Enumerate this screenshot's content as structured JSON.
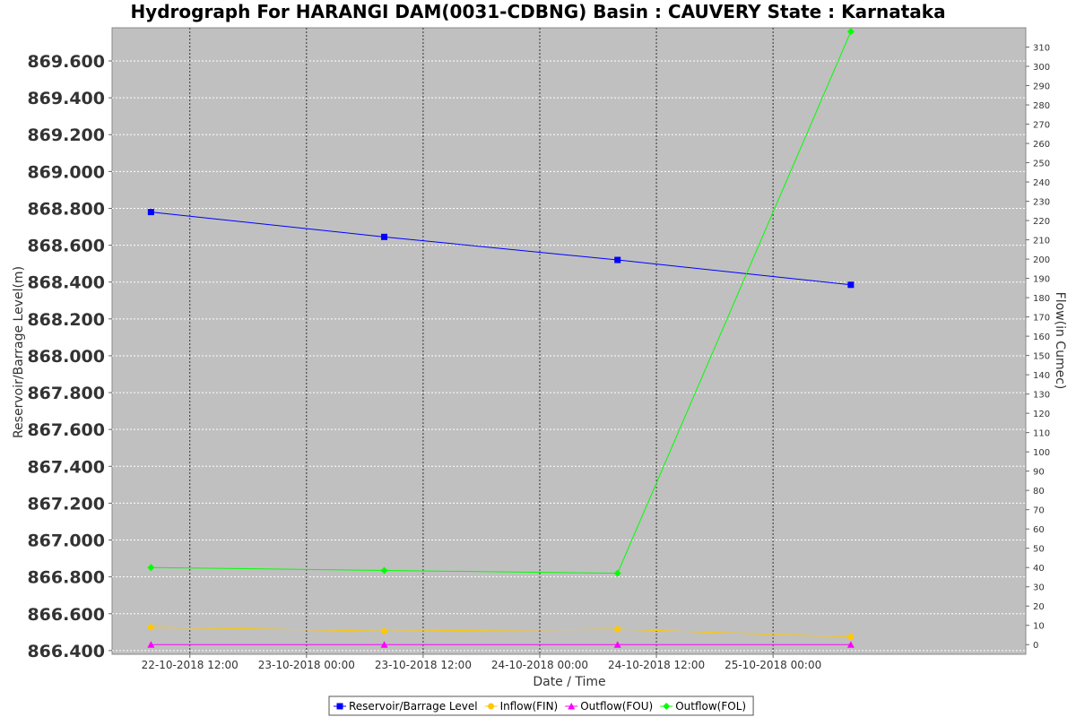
{
  "chart_data": {
    "type": "line",
    "title": "Hydrograph For HARANGI DAM(0031-CDBNG) Basin : CAUVERY State : Karnataka",
    "xlabel": "Date / Time",
    "ylabel_left": "Reservoir/Barrage Level(m)",
    "ylabel_right": "Flow(in Cumec)",
    "x_range": [
      "2018-10-22T04:00",
      "2018-10-26T02:00"
    ],
    "ylim_left": [
      866.38,
      869.78
    ],
    "ylim_right": [
      -5,
      320
    ],
    "x_ticks": [
      {
        "t": "2018-10-22T12:00",
        "label": "22-10-2018 12:00"
      },
      {
        "t": "2018-10-23T00:00",
        "label": "23-10-2018 00:00"
      },
      {
        "t": "2018-10-23T12:00",
        "label": "23-10-2018 12:00"
      },
      {
        "t": "2018-10-24T00:00",
        "label": "24-10-2018 00:00"
      },
      {
        "t": "2018-10-24T12:00",
        "label": "24-10-2018 12:00"
      },
      {
        "t": "2018-10-25T00:00",
        "label": "25-10-2018 00:00"
      }
    ],
    "y_ticks_left": [
      "866.400",
      "866.600",
      "866.800",
      "867.000",
      "867.200",
      "867.400",
      "867.600",
      "867.800",
      "868.000",
      "868.200",
      "868.400",
      "868.600",
      "868.800",
      "869.000",
      "869.200",
      "869.400",
      "869.600"
    ],
    "y_ticks_right": [
      "0",
      "10",
      "20",
      "30",
      "40",
      "50",
      "60",
      "70",
      "80",
      "90",
      "100",
      "110",
      "120",
      "130",
      "140",
      "150",
      "160",
      "170",
      "180",
      "190",
      "200",
      "210",
      "220",
      "230",
      "240",
      "250",
      "260",
      "270",
      "280",
      "290",
      "300",
      "310"
    ],
    "x": [
      "2018-10-22T08:00",
      "2018-10-23T08:00",
      "2018-10-24T08:00",
      "2018-10-25T08:00"
    ],
    "series": [
      {
        "name": "Reservoir/Barrage Level",
        "axis": "left",
        "color": "#0000ff",
        "marker": "square",
        "values": [
          868.78,
          868.645,
          868.52,
          868.385
        ]
      },
      {
        "name": "Inflow(FIN)",
        "axis": "right",
        "color": "#ffc800",
        "marker": "circle",
        "values": [
          9,
          7,
          8,
          4
        ]
      },
      {
        "name": "Outflow(FOU)",
        "axis": "right",
        "color": "#ff00ff",
        "marker": "triangle",
        "values": [
          0,
          0,
          0,
          0
        ]
      },
      {
        "name": "Outflow(FOL)",
        "axis": "right",
        "color": "#00ff00",
        "marker": "diamond",
        "values": [
          40,
          38.5,
          37,
          318
        ]
      }
    ],
    "grid": true,
    "legend_position": "bottom",
    "plot_background": "#c0c0c0"
  }
}
